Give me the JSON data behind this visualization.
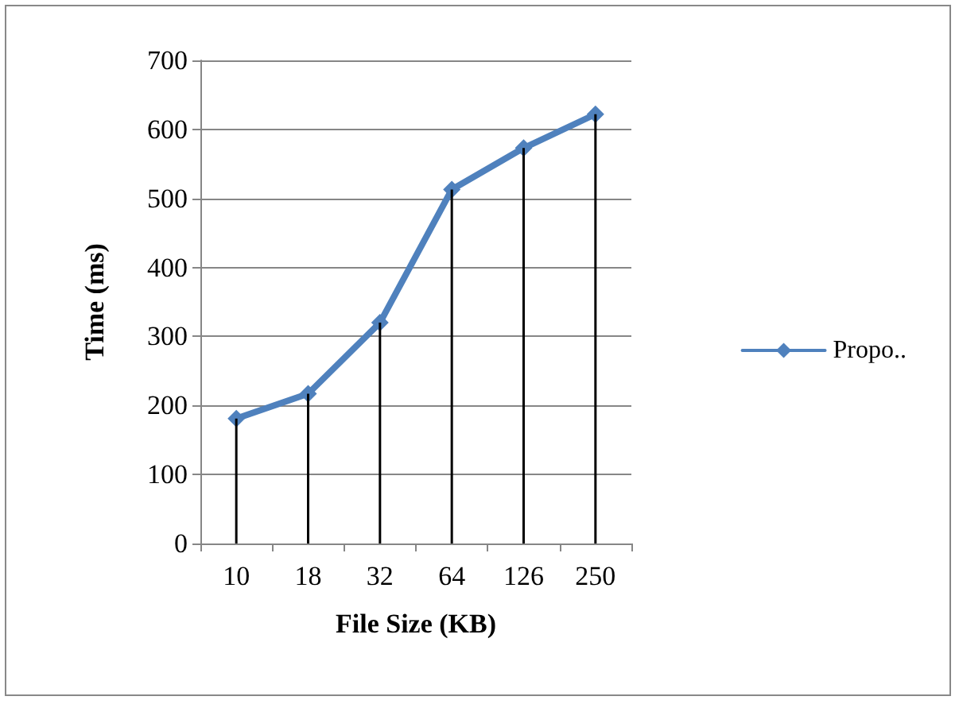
{
  "chart_data": {
    "type": "line",
    "xlabel": "File Size (KB)",
    "ylabel": "Time (ms)",
    "categories": [
      "10",
      "18",
      "32",
      "64",
      "126",
      "250"
    ],
    "series": [
      {
        "name": "Propo..",
        "color": "#4f81bd",
        "values": [
          181,
          217,
          320,
          513,
          573,
          622
        ]
      },
      {
        "type": "bar",
        "color": "#000000",
        "values": [
          181,
          217,
          320,
          513,
          573,
          622
        ]
      }
    ],
    "ylim": [
      0,
      700
    ],
    "yticks": [
      0,
      100,
      200,
      300,
      400,
      500,
      600,
      700
    ],
    "grid": "y",
    "legend": "right",
    "marker": "diamond",
    "line_style": "solid"
  }
}
